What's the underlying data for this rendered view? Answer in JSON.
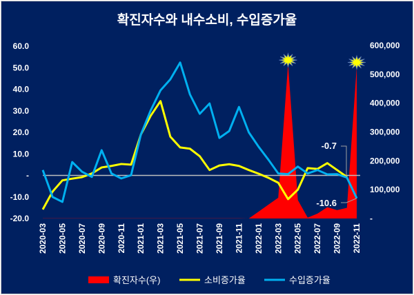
{
  "chart_data": {
    "type": "line",
    "title": "확진자수와 내수소비, 수입증가율",
    "x": [
      "2020-03",
      "2020-04",
      "2020-05",
      "2020-06",
      "2020-07",
      "2020-08",
      "2020-09",
      "2020-10",
      "2020-11",
      "2020-12",
      "2021-01",
      "2021-02",
      "2021-03",
      "2021-04",
      "2021-05",
      "2021-06",
      "2021-07",
      "2021-08",
      "2021-09",
      "2021-10",
      "2021-11",
      "2021-12",
      "2022-01",
      "2022-02",
      "2022-03",
      "2022-04",
      "2022-05",
      "2022-06",
      "2022-07",
      "2022-08",
      "2022-09",
      "2022-10",
      "2022-11"
    ],
    "x_tick_labels": [
      "2020-03",
      "2020-05",
      "2020-07",
      "2020-09",
      "2020-11",
      "2021-01",
      "2021-03",
      "2021-05",
      "2021-07",
      "2021-09",
      "2021-11",
      "2022-01",
      "2022-03",
      "2022-05",
      "2022-07",
      "2022-09",
      "2022-11"
    ],
    "y_left": {
      "range": [
        -20,
        60
      ],
      "tick_labels": [
        "-20.0",
        "-10.0",
        "-",
        "10.0",
        "20.0",
        "30.0",
        "40.0",
        "50.0",
        "60.0"
      ]
    },
    "y_right": {
      "range": [
        0,
        600000
      ],
      "tick_labels": [
        "-",
        "100,000",
        "200,000",
        "300,000",
        "400,000",
        "500,000",
        "600,000"
      ]
    },
    "series": [
      {
        "name": "확진자수(우)",
        "type": "area",
        "axis": "right",
        "color": "#ff0000",
        "values": [
          500,
          500,
          500,
          500,
          500,
          500,
          500,
          500,
          500,
          500,
          500,
          500,
          500,
          500,
          500,
          500,
          500,
          500,
          500,
          500,
          500,
          0,
          24000,
          48000,
          72000,
          535000,
          64000,
          3000,
          17000,
          39000,
          29000,
          37000,
          527000
        ]
      },
      {
        "name": "소비증가율",
        "type": "line",
        "axis": "left",
        "color": "#ffff00",
        "values": [
          -15.8,
          -7.5,
          -2.3,
          -1.5,
          -0.8,
          0.9,
          3.7,
          4.4,
          5.3,
          5.0,
          19.0,
          27.7,
          34.5,
          18.0,
          13.0,
          12.4,
          8.9,
          2.5,
          4.6,
          5.2,
          4.4,
          2.5,
          0.8,
          -1.1,
          -3.4,
          -11.0,
          -6.6,
          3.4,
          3.0,
          5.7,
          2.5,
          -0.7,
          null
        ]
      },
      {
        "name": "수입증가율",
        "type": "line",
        "axis": "left",
        "color": "#00b0f0",
        "values": [
          2.5,
          -10.0,
          -12.3,
          6.2,
          1.7,
          -0.7,
          11.7,
          0.9,
          -1.4,
          0.1,
          19.0,
          30.2,
          39.5,
          44.6,
          52.4,
          37.6,
          28.6,
          33.4,
          17.4,
          20.6,
          31.8,
          20.0,
          13.3,
          7.3,
          0.9,
          0.6,
          4.1,
          0.9,
          2.5,
          0.5,
          0.6,
          -1.0,
          -10.6
        ]
      }
    ],
    "annotations": [
      "-0.7",
      "-10.6"
    ],
    "zero_line": true,
    "grid": false,
    "legend_position": "bottom",
    "peak_markers": [
      "2022-04",
      "2022-11"
    ],
    "background": "#002060"
  }
}
